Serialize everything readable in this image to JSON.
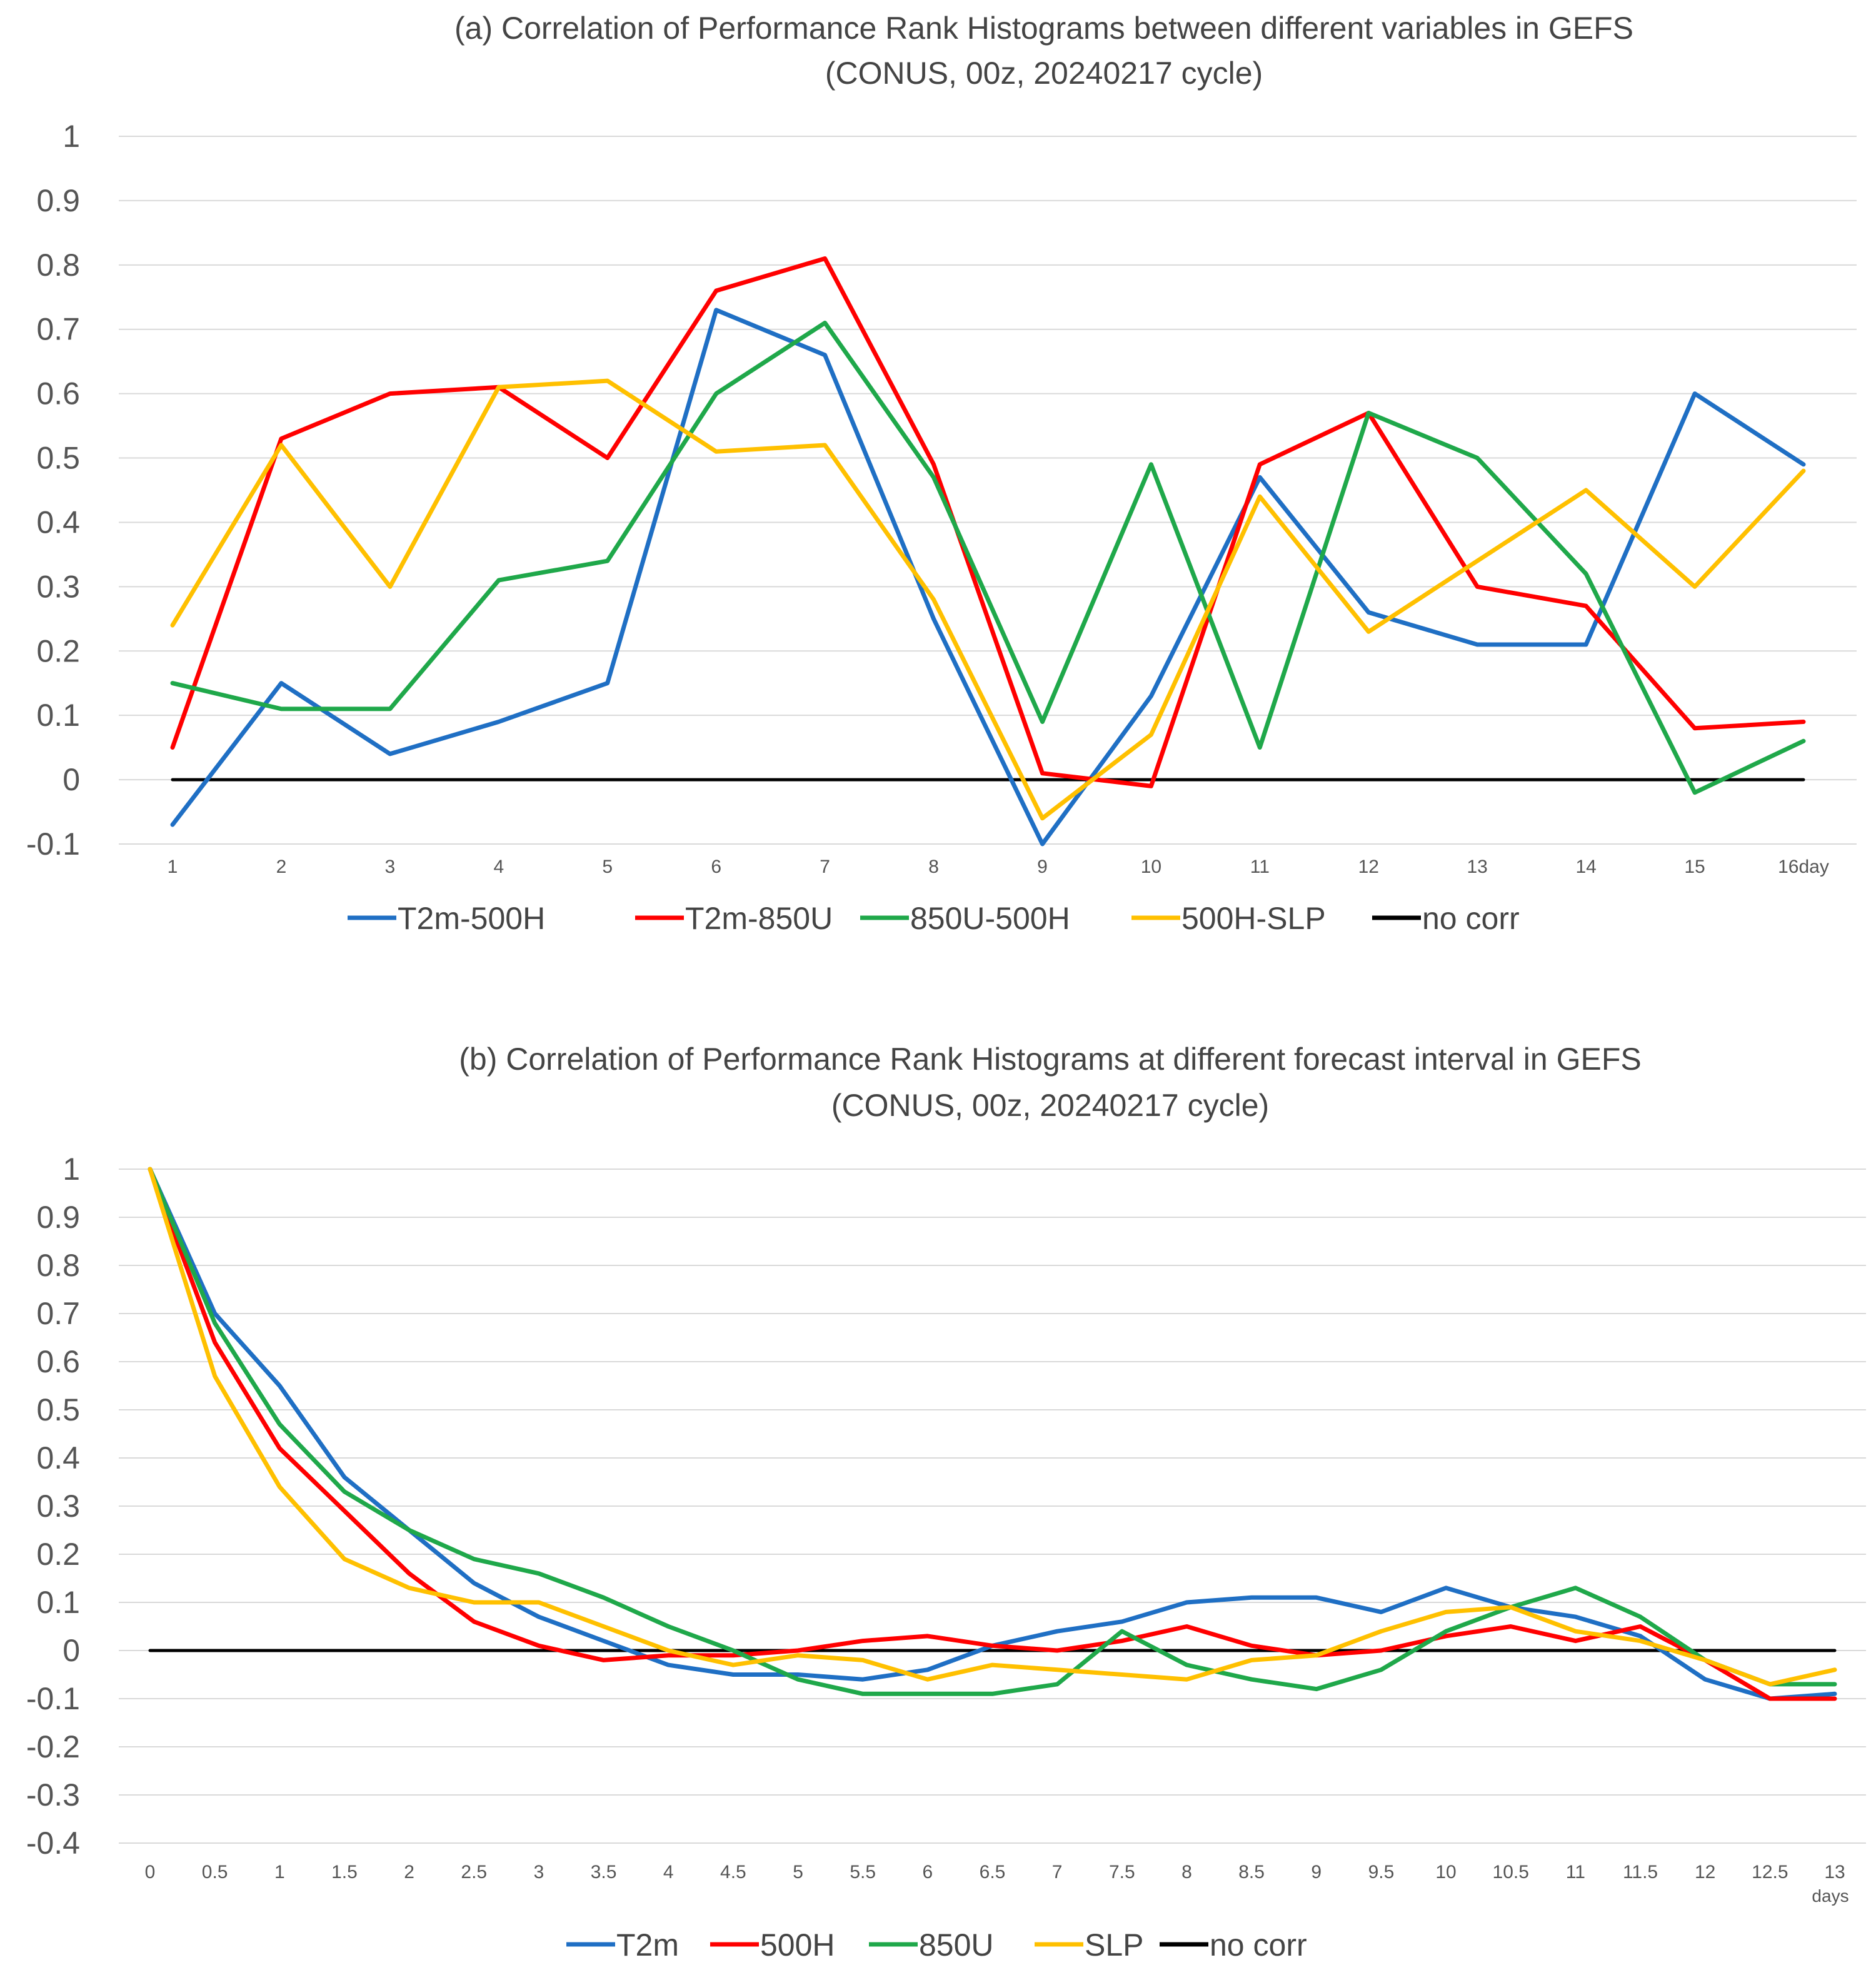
{
  "colors": {
    "blue": "#1f6fc4",
    "red": "#ff0000",
    "green": "#1fa84a",
    "yellow": "#ffc000",
    "black": "#000000",
    "grid": "#d9d9d9"
  },
  "chart_data": [
    {
      "type": "line",
      "title": "(a) Correlation of Performance Rank Histograms between different variables in GEFS",
      "subtitle": "(CONUS, 00z, 20240217 cycle)",
      "categories": [
        "1",
        "2",
        "3",
        "4",
        "5",
        "6",
        "7",
        "8",
        "9",
        "10",
        "11",
        "12",
        "13",
        "14",
        "15",
        "16day"
      ],
      "xlabel": "",
      "ylabel": "",
      "ylim": [
        -0.1,
        1
      ],
      "yticks": [
        "-0.1",
        "0",
        "0.1",
        "0.2",
        "0.3",
        "0.4",
        "0.5",
        "0.6",
        "0.7",
        "0.8",
        "0.9",
        "1"
      ],
      "grid": true,
      "legend_position": "bottom",
      "series": [
        {
          "name": "T2m-500H",
          "color": "#1f6fc4",
          "values": [
            -0.07,
            0.15,
            0.04,
            0.09,
            0.15,
            0.73,
            0.66,
            0.25,
            -0.1,
            0.13,
            0.47,
            0.26,
            0.21,
            0.21,
            0.6,
            0.49
          ]
        },
        {
          "name": "T2m-850U",
          "color": "#ff0000",
          "values": [
            0.05,
            0.53,
            0.6,
            0.61,
            0.5,
            0.76,
            0.81,
            0.49,
            0.01,
            -0.01,
            0.49,
            0.57,
            0.3,
            0.27,
            0.08,
            0.09
          ]
        },
        {
          "name": "850U-500H",
          "color": "#1fa84a",
          "values": [
            0.15,
            0.11,
            0.11,
            0.31,
            0.34,
            0.6,
            0.71,
            0.47,
            0.09,
            0.49,
            0.05,
            0.57,
            0.5,
            0.32,
            -0.02,
            0.06
          ]
        },
        {
          "name": "500H-SLP",
          "color": "#ffc000",
          "values": [
            0.24,
            0.52,
            0.3,
            0.61,
            0.62,
            0.51,
            0.52,
            0.28,
            -0.06,
            0.07,
            0.44,
            0.23,
            0.34,
            0.45,
            0.3,
            0.48
          ]
        },
        {
          "name": "no corr",
          "color": "#000000",
          "values": [
            0,
            0,
            0,
            0,
            0,
            0,
            0,
            0,
            0,
            0,
            0,
            0,
            0,
            0,
            0,
            0
          ]
        }
      ]
    },
    {
      "type": "line",
      "title": "(b) Correlation of Performance Rank Histograms at different forecast interval in GEFS",
      "subtitle": "(CONUS, 00z, 20240217 cycle)",
      "categories": [
        "0",
        "0.5",
        "1",
        "1.5",
        "2",
        "2.5",
        "3",
        "3.5",
        "4",
        "4.5",
        "5",
        "5.5",
        "6",
        "6.5",
        "7",
        "7.5",
        "8",
        "8.5",
        "9",
        "9.5",
        "10",
        "10.5",
        "11",
        "11.5",
        "12",
        "12.5",
        "13"
      ],
      "xlabel": "days",
      "ylabel": "",
      "ylim": [
        -0.4,
        1
      ],
      "yticks": [
        "-0.4",
        "-0.3",
        "-0.2",
        "-0.1",
        "0",
        "0.1",
        "0.2",
        "0.3",
        "0.4",
        "0.5",
        "0.6",
        "0.7",
        "0.8",
        "0.9",
        "1"
      ],
      "grid": true,
      "legend_position": "bottom",
      "series": [
        {
          "name": "T2m",
          "color": "#1f6fc4",
          "values": [
            1.0,
            0.7,
            0.55,
            0.36,
            0.25,
            0.14,
            0.07,
            0.02,
            -0.03,
            -0.05,
            -0.05,
            -0.06,
            -0.04,
            0.01,
            0.04,
            0.06,
            0.1,
            0.11,
            0.11,
            0.08,
            0.13,
            0.09,
            0.07,
            0.03,
            -0.06,
            -0.1,
            -0.09
          ]
        },
        {
          "name": "500H",
          "color": "#ff0000",
          "values": [
            1.0,
            0.64,
            0.42,
            0.29,
            0.16,
            0.06,
            0.01,
            -0.02,
            -0.01,
            -0.01,
            0.0,
            0.02,
            0.03,
            0.01,
            0.0,
            0.02,
            0.05,
            0.01,
            -0.01,
            0.0,
            0.03,
            0.05,
            0.02,
            0.05,
            -0.02,
            -0.1,
            -0.1
          ]
        },
        {
          "name": "850U",
          "color": "#1fa84a",
          "values": [
            1.0,
            0.68,
            0.47,
            0.33,
            0.25,
            0.19,
            0.16,
            0.11,
            0.05,
            0.0,
            -0.06,
            -0.09,
            -0.09,
            -0.09,
            -0.07,
            0.04,
            -0.03,
            -0.06,
            -0.08,
            -0.04,
            0.04,
            0.09,
            0.13,
            0.07,
            -0.02,
            -0.07,
            -0.07
          ]
        },
        {
          "name": "SLP",
          "color": "#ffc000",
          "values": [
            1.0,
            0.57,
            0.34,
            0.19,
            0.13,
            0.1,
            0.1,
            0.05,
            0.0,
            -0.03,
            -0.01,
            -0.02,
            -0.06,
            -0.03,
            -0.04,
            -0.05,
            -0.06,
            -0.02,
            -0.01,
            0.04,
            0.08,
            0.09,
            0.04,
            0.02,
            -0.02,
            -0.07,
            -0.04
          ]
        },
        {
          "name": "no corr",
          "color": "#000000",
          "values": [
            0,
            0,
            0,
            0,
            0,
            0,
            0,
            0,
            0,
            0,
            0,
            0,
            0,
            0,
            0,
            0,
            0,
            0,
            0,
            0,
            0,
            0,
            0,
            0,
            0,
            0,
            0
          ]
        }
      ]
    }
  ]
}
